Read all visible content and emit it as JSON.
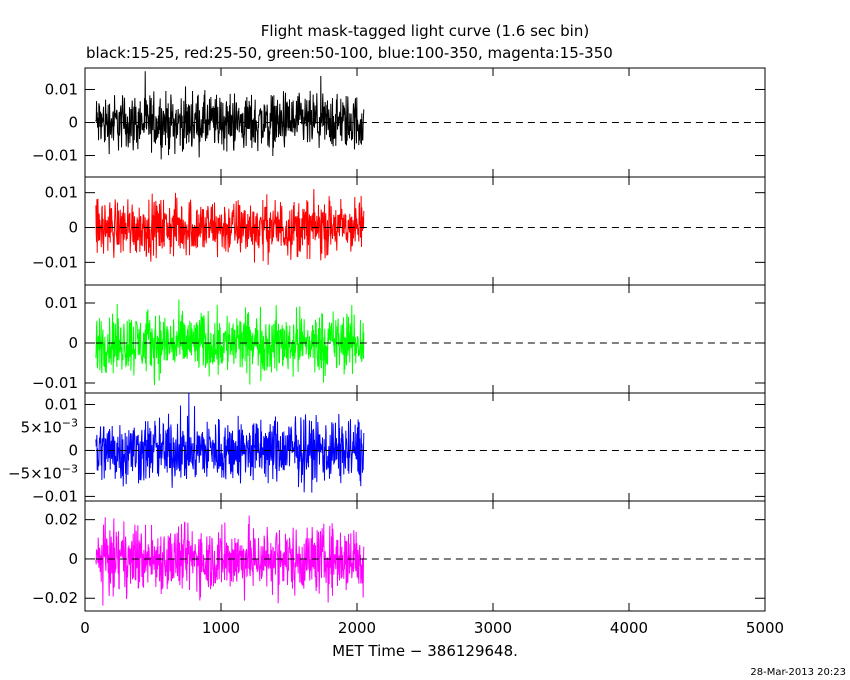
{
  "page": {
    "title": "Flight mask-tagged light curve (1.6 sec bin)",
    "subtitle": "black:15-25, red:25-50, green:50-100, blue:100-350, magenta:15-350",
    "timestamp": "28-Mar-2013 20:23"
  },
  "chart_data": {
    "type": "line",
    "x_axis": {
      "label": "MET Time - 386129648.",
      "range": [
        0,
        5000
      ],
      "ticks": [
        0,
        1000,
        2000,
        3000,
        4000,
        5000
      ],
      "tick_labels": [
        "0",
        "1000",
        "2000",
        "3000",
        "4000",
        "5000"
      ]
    },
    "data_x_range": [
      80,
      2050
    ],
    "bin_seconds": 1.6,
    "reference_line": {
      "y": 0,
      "style": "dashed",
      "x_range": [
        80,
        5000
      ]
    },
    "panels": [
      {
        "band": "15-25",
        "color": "#000000",
        "ylim": [
          -0.0165,
          0.0165
        ],
        "y_ticks": [
          -0.01,
          0,
          0.01
        ],
        "y_tick_labels": [
          "-0.01",
          "0",
          "0.01"
        ],
        "noise_amplitude": 0.0125
      },
      {
        "band": "25-50",
        "color": "#ff0000",
        "ylim": [
          -0.0165,
          0.0145
        ],
        "y_ticks": [
          -0.01,
          0,
          0.01
        ],
        "y_tick_labels": [
          "-0.01",
          "0",
          "0.01"
        ],
        "noise_amplitude": 0.012
      },
      {
        "band": "50-100",
        "color": "#00ff00",
        "ylim": [
          -0.0125,
          0.0145
        ],
        "y_ticks": [
          -0.01,
          0,
          0.01
        ],
        "y_tick_labels": [
          "-0.01",
          "0",
          "0.01"
        ],
        "noise_amplitude": 0.0115
      },
      {
        "band": "100-350",
        "color": "#0000ff",
        "ylim": [
          -0.011,
          0.0125
        ],
        "y_ticks": [
          -0.01,
          -0.005,
          0,
          0.005,
          0.01
        ],
        "y_tick_labels": [
          "-0.01",
          "-5x10^-3",
          "0",
          "5x10^-3",
          "0.01"
        ],
        "noise_amplitude": 0.0105
      },
      {
        "band": "15-350",
        "color": "#ff00ff",
        "ylim": [
          -0.0265,
          0.0295
        ],
        "y_ticks": [
          -0.02,
          0,
          0.02
        ],
        "y_tick_labels": [
          "-0.02",
          "0",
          "0.02"
        ],
        "noise_amplitude": 0.025
      }
    ]
  }
}
